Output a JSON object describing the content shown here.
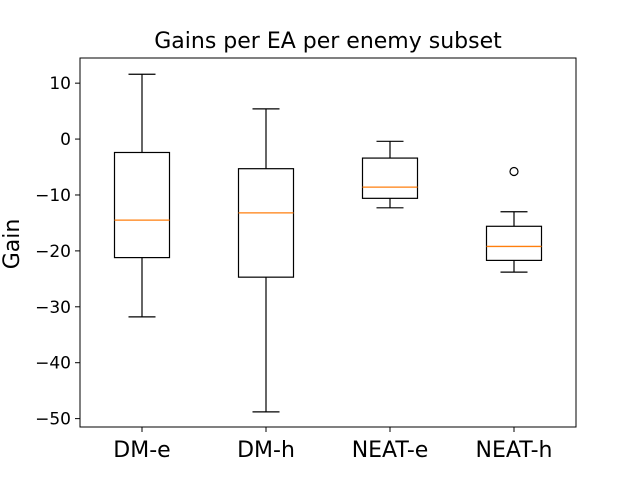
{
  "chart_data": {
    "type": "box",
    "title": "Gains per EA per enemy subset",
    "xlabel": "",
    "ylabel": "Gain",
    "ylim": [
      -51.5,
      14.5
    ],
    "yticks": [
      10,
      0,
      -10,
      -20,
      -30,
      -40,
      -50
    ],
    "ytick_labels": [
      "10",
      "0",
      "−10",
      "−20",
      "−30",
      "−40",
      "−50"
    ],
    "grid": false,
    "categories": [
      "DM-e",
      "DM-h",
      "NEAT-e",
      "NEAT-h"
    ],
    "boxes": [
      {
        "name": "DM-e",
        "whisker_low": -31.8,
        "q1": -21.2,
        "median": -14.5,
        "q3": -2.4,
        "whisker_high": 11.6,
        "outliers": []
      },
      {
        "name": "DM-h",
        "whisker_low": -48.8,
        "q1": -24.7,
        "median": -13.2,
        "q3": -5.3,
        "whisker_high": 5.4,
        "outliers": []
      },
      {
        "name": "NEAT-e",
        "whisker_low": -12.3,
        "q1": -10.6,
        "median": -8.6,
        "q3": -3.4,
        "whisker_high": -0.4,
        "outliers": []
      },
      {
        "name": "NEAT-h",
        "whisker_low": -23.8,
        "q1": -21.7,
        "median": -19.2,
        "q3": -15.6,
        "whisker_high": -13.0,
        "outliers": [
          -5.8
        ]
      }
    ],
    "colors": {
      "box": "#000000",
      "median": "#ff7f0e",
      "background": "#ffffff"
    }
  }
}
